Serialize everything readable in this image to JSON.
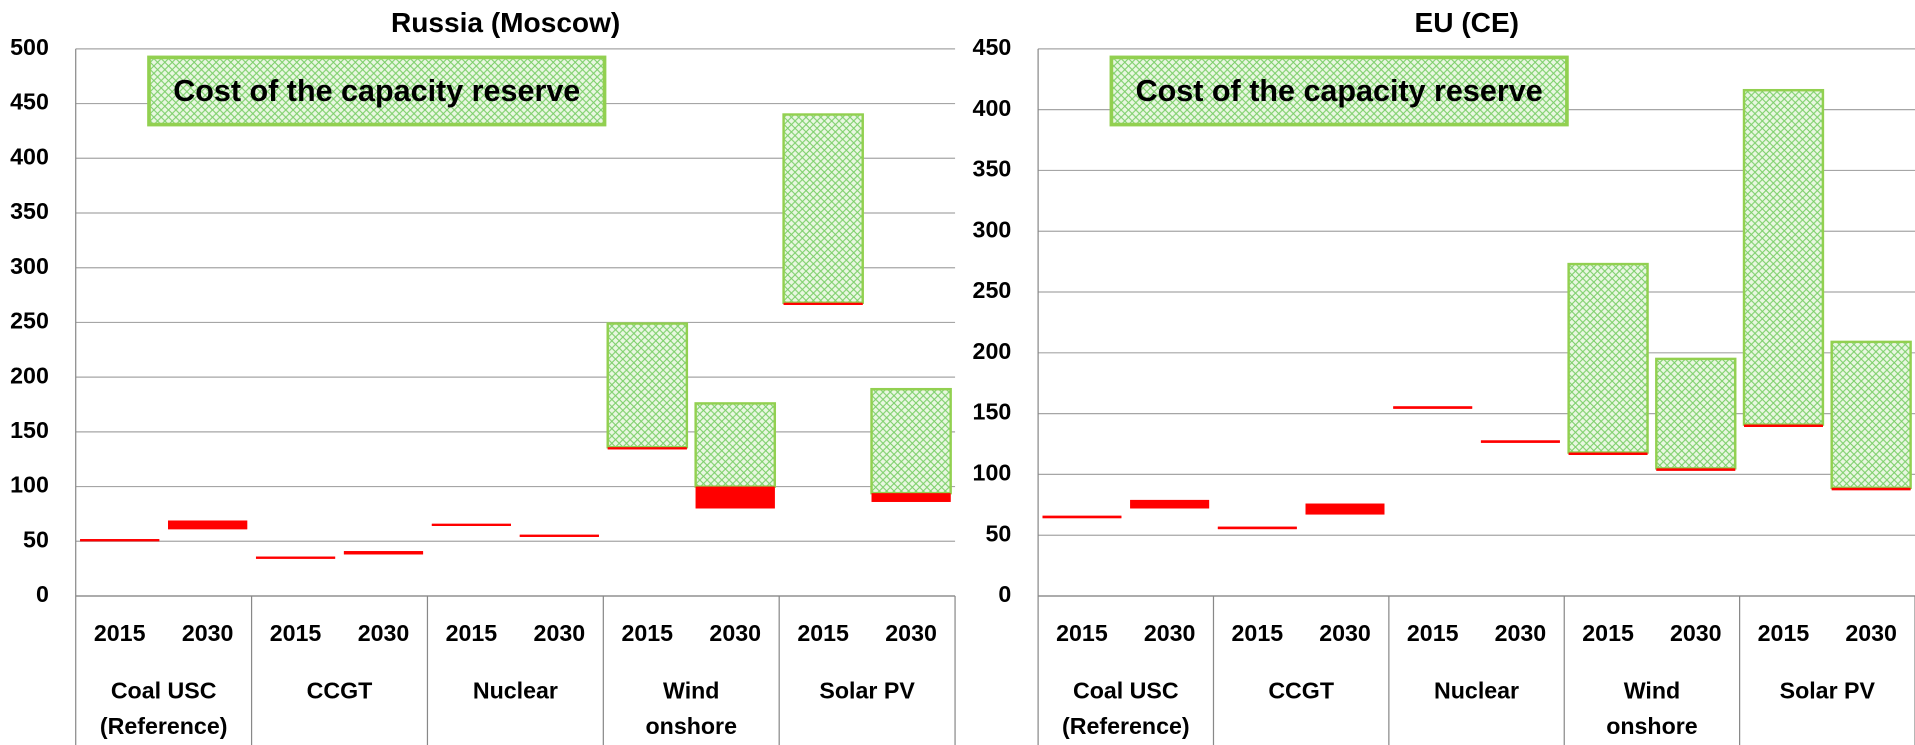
{
  "chart_data": [
    {
      "type": "floating-bar",
      "title": "Russia (Moscow)",
      "annotation": "Cost of the capacity reserve",
      "categories": [
        "2015",
        "2030",
        "2015",
        "2030",
        "2015",
        "2030",
        "2015",
        "2030",
        "2015",
        "2030"
      ],
      "groups": [
        [
          "Coal USC",
          "(Reference)"
        ],
        [
          "CCGT"
        ],
        [
          "Nuclear"
        ],
        [
          "Wind",
          "onshore"
        ],
        [
          "Solar PV"
        ]
      ],
      "ylim": [
        0,
        500
      ],
      "yticks": [
        0,
        50,
        100,
        150,
        200,
        250,
        300,
        350,
        400,
        450,
        500
      ],
      "grid": true,
      "series": [
        {
          "color": "#ff0000",
          "low": [
            50,
            61,
            34,
            38,
            64,
            54,
            134,
            80,
            266,
            86
          ],
          "high": [
            52,
            69,
            36,
            41,
            66,
            56,
            136,
            100,
            268,
            94
          ]
        },
        {
          "color": "#92d050",
          "low": [
            null,
            null,
            null,
            null,
            null,
            null,
            136,
            100,
            268,
            94
          ],
          "high": [
            null,
            null,
            null,
            null,
            null,
            null,
            249,
            176,
            440,
            189
          ]
        }
      ]
    },
    {
      "type": "floating-bar",
      "title": "EU (CE)",
      "annotation": "Cost of the capacity reserve",
      "categories": [
        "2015",
        "2030",
        "2015",
        "2030",
        "2015",
        "2030",
        "2015",
        "2030",
        "2015",
        "2030"
      ],
      "groups": [
        [
          "Coal USC",
          "(Reference)"
        ],
        [
          "CCGT"
        ],
        [
          "Nuclear"
        ],
        [
          "Wind",
          "onshore"
        ],
        [
          "Solar PV"
        ]
      ],
      "ylim": [
        0,
        450
      ],
      "yticks": [
        0,
        50,
        100,
        150,
        200,
        250,
        300,
        350,
        400,
        450
      ],
      "grid": true,
      "series": [
        {
          "color": "#ff0000",
          "low": [
            64,
            72,
            55,
            67,
            154,
            126,
            116,
            103,
            139,
            87
          ],
          "high": [
            66,
            79,
            57,
            76,
            156,
            128,
            118,
            105,
            141,
            89
          ]
        },
        {
          "color": "#92d050",
          "low": [
            null,
            null,
            null,
            null,
            null,
            null,
            118,
            105,
            141,
            89
          ],
          "high": [
            null,
            null,
            null,
            null,
            null,
            null,
            273,
            195,
            416,
            209
          ]
        }
      ]
    }
  ]
}
